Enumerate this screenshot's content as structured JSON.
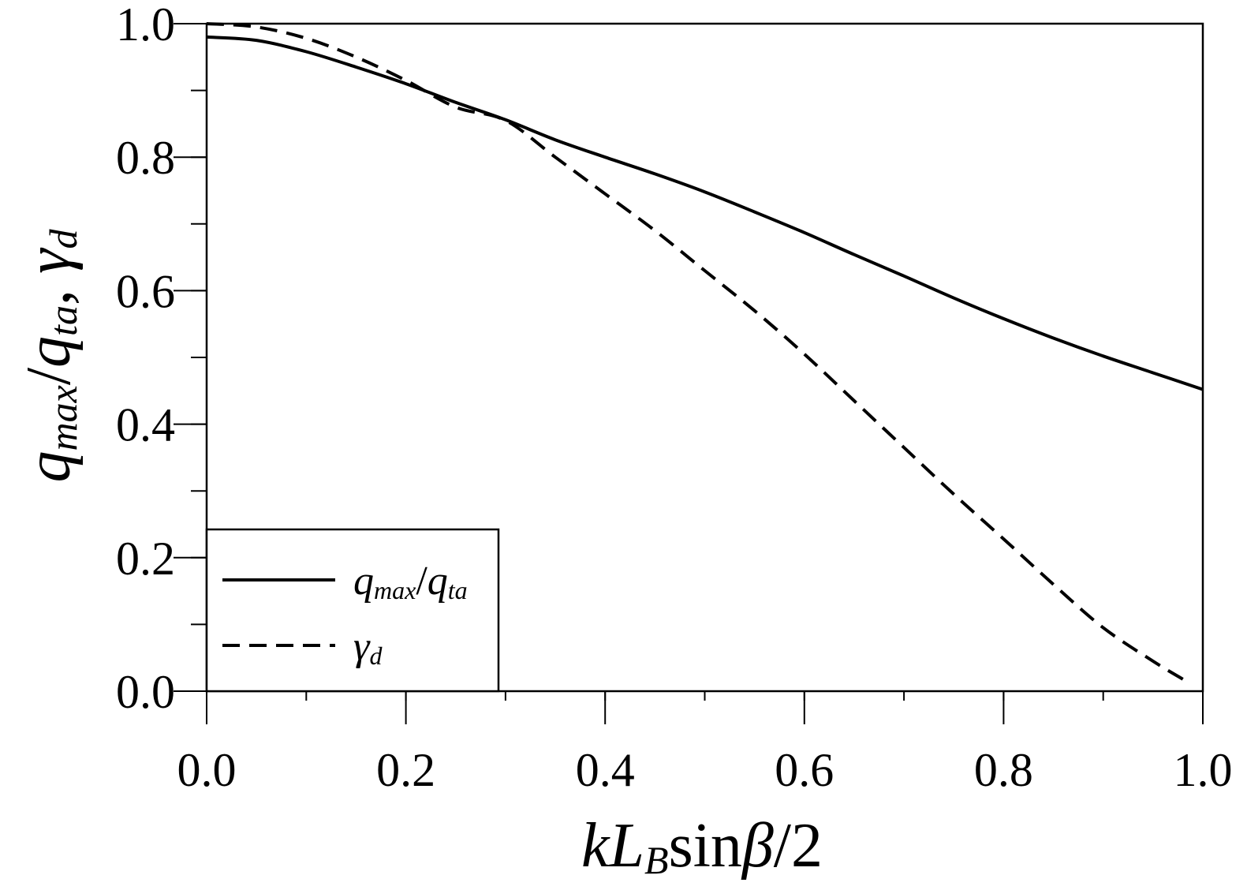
{
  "chart_data": {
    "type": "line",
    "title": "",
    "xlabel": {
      "parts": [
        {
          "text": "k",
          "style": "italic"
        },
        {
          "text": "L",
          "style": "italic"
        },
        {
          "text": "B",
          "style": "italic-sub"
        },
        {
          "text": "sin",
          "style": "normal"
        },
        {
          "text": "β",
          "style": "italic"
        },
        {
          "text": "/2",
          "style": "normal"
        }
      ]
    },
    "ylabel": {
      "parts": [
        {
          "text": "q",
          "style": "italic"
        },
        {
          "text": "max",
          "style": "italic-sub"
        },
        {
          "text": "/",
          "style": "normal"
        },
        {
          "text": "q",
          "style": "italic"
        },
        {
          "text": "ta",
          "style": "italic-sub"
        },
        {
          "text": ", ",
          "style": "normal"
        },
        {
          "text": "γ",
          "style": "italic"
        },
        {
          "text": "d",
          "style": "italic-sub"
        }
      ]
    },
    "xlim": [
      0.0,
      1.0
    ],
    "ylim": [
      0.0,
      1.0
    ],
    "x_ticks": [
      "0.0",
      "0.2",
      "0.4",
      "0.6",
      "0.8",
      "1.0"
    ],
    "y_ticks": [
      "0.0",
      "0.2",
      "0.4",
      "0.6",
      "0.8",
      "1.0"
    ],
    "x_minor_step": 0.1,
    "y_minor_step": 0.1,
    "grid": false,
    "legend_position": "bottom-left",
    "series": [
      {
        "name_parts": [
          {
            "text": "q",
            "style": "italic"
          },
          {
            "text": "max",
            "style": "italic-sub"
          },
          {
            "text": "/",
            "style": "normal"
          },
          {
            "text": "q",
            "style": "italic"
          },
          {
            "text": "ta",
            "style": "italic-sub"
          }
        ],
        "line_style": "solid",
        "color": "#000000",
        "x": [
          0.0,
          0.05,
          0.1,
          0.15,
          0.2,
          0.25,
          0.3,
          0.35,
          0.4,
          0.45,
          0.5,
          0.55,
          0.6,
          0.65,
          0.7,
          0.75,
          0.8,
          0.85,
          0.9,
          0.95,
          1.0
        ],
        "y": [
          0.98,
          0.975,
          0.958,
          0.935,
          0.91,
          0.882,
          0.856,
          0.826,
          0.8,
          0.775,
          0.748,
          0.718,
          0.687,
          0.654,
          0.622,
          0.589,
          0.558,
          0.529,
          0.502,
          0.477,
          0.452
        ]
      },
      {
        "name_parts": [
          {
            "text": "γ",
            "style": "italic"
          },
          {
            "text": "d",
            "style": "italic-sub"
          }
        ],
        "line_style": "dashed",
        "color": "#000000",
        "x": [
          0.0,
          0.05,
          0.1,
          0.15,
          0.2,
          0.25,
          0.3,
          0.35,
          0.4,
          0.45,
          0.5,
          0.55,
          0.6,
          0.65,
          0.7,
          0.75,
          0.8,
          0.85,
          0.9,
          0.95,
          0.98
        ],
        "y": [
          1.0,
          0.995,
          0.978,
          0.95,
          0.915,
          0.875,
          0.855,
          0.8,
          0.745,
          0.69,
          0.63,
          0.57,
          0.505,
          0.435,
          0.365,
          0.295,
          0.228,
          0.16,
          0.095,
          0.045,
          0.018
        ]
      }
    ]
  }
}
